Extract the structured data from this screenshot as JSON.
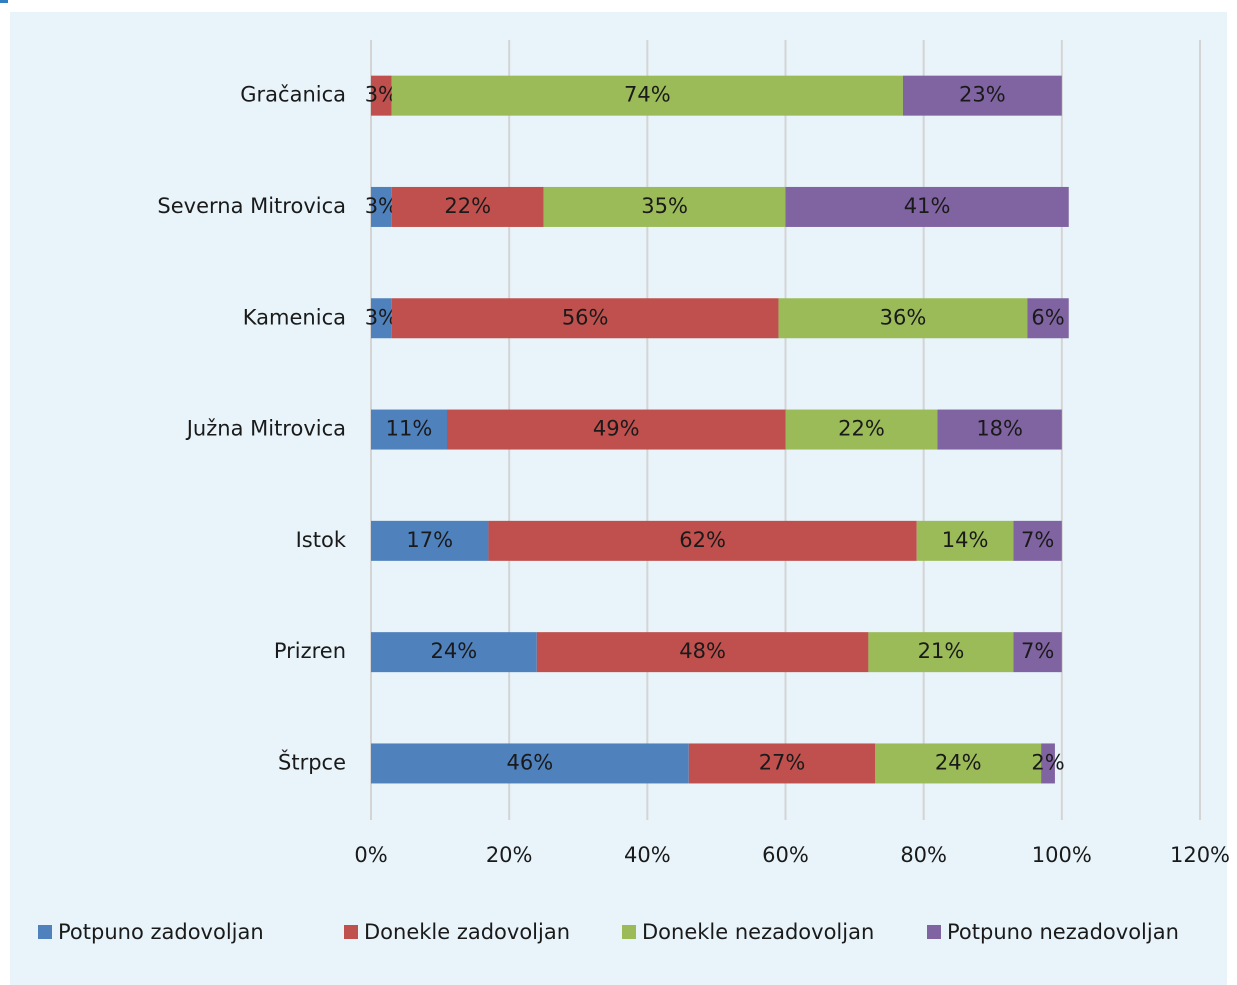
{
  "chart_data": {
    "type": "stacked-barh",
    "categories": [
      "Gračanica",
      "Severna Mitrovica",
      "Kamenica",
      "Južna Mitrovica",
      "Istok",
      "Prizren",
      "Štrpce"
    ],
    "series": [
      {
        "name": "Potpuno zadovoljan",
        "color": "#4f81bd",
        "values": [
          null,
          3,
          3,
          11,
          17,
          24,
          46
        ],
        "value_labels": [
          null,
          "3%",
          "3%",
          "11%",
          "17%",
          "24%",
          "46%"
        ]
      },
      {
        "name": "Donekle zadovoljan",
        "color": "#c0504d",
        "values": [
          3,
          22,
          56,
          49,
          62,
          48,
          27
        ],
        "value_labels": [
          "3%",
          "22%",
          "56%",
          "49%",
          "62%",
          "48%",
          "27%"
        ]
      },
      {
        "name": "Donekle nezadovoljan",
        "color": "#9bbb59",
        "values": [
          74,
          35,
          36,
          22,
          14,
          21,
          24
        ],
        "value_labels": [
          "74%",
          "35%",
          "36%",
          "22%",
          "14%",
          "21%",
          "24%"
        ]
      },
      {
        "name": "Potpuno nezadovoljan",
        "color": "#8064a2",
        "values": [
          23,
          41,
          6,
          18,
          7,
          7,
          2
        ],
        "value_labels": [
          "23%",
          "41%",
          "6%",
          "18%",
          "7%",
          "7%",
          "2%"
        ]
      }
    ],
    "xlim": [
      0,
      120
    ],
    "xticks": [
      {
        "value": 0,
        "label": "0%"
      },
      {
        "value": 20,
        "label": "20%"
      },
      {
        "value": 40,
        "label": "40%"
      },
      {
        "value": 60,
        "label": "60%"
      },
      {
        "value": 80,
        "label": "80%"
      },
      {
        "value": 100,
        "label": "100%"
      },
      {
        "value": 120,
        "label": "120%"
      }
    ],
    "grid": true,
    "legend": "bottom"
  }
}
